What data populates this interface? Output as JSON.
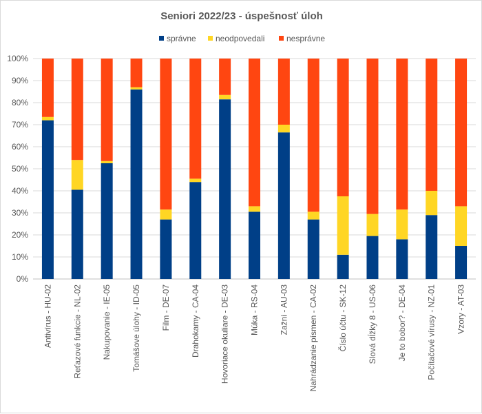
{
  "chart_data": {
    "type": "bar",
    "stacked": true,
    "normalized": true,
    "title": "Seniori 2022/23 - úspešnosť úloh",
    "xlabel": "",
    "ylabel": "",
    "ylim": [
      0,
      100
    ],
    "y_ticks": [
      "0%",
      "10%",
      "20%",
      "30%",
      "40%",
      "50%",
      "60%",
      "70%",
      "80%",
      "90%",
      "100%"
    ],
    "grid": true,
    "legend_position": "top",
    "categories": [
      "Antivírus - HU-02",
      "Reťazové funkcie - NL-02",
      "Nakupovanie - IE-05",
      "Tomášove úlohy - ID-05",
      "Film - DE-07",
      "Drahokamy - CA-04",
      "Hovoriace okuliare - DE-03",
      "Múka - RS-04",
      "Zažni - AU-03",
      "Nahrádzanie písmen - CA-02",
      "Číslo účtu - SK-12",
      "Slová dĺžky 8 - US-06",
      "Je to bobor? - DE-04",
      "Počítačové vírusy - NZ-01",
      "Vzory - AT-03"
    ],
    "series": [
      {
        "name": "správne",
        "color": "#003f87",
        "values": [
          72,
          40.5,
          52.5,
          86,
          27,
          44,
          81.5,
          30.5,
          66.5,
          27,
          11,
          19.5,
          18,
          29,
          15
        ]
      },
      {
        "name": "neodpovedali",
        "color": "#ffd624",
        "values": [
          1.5,
          13.5,
          1,
          1,
          4.5,
          1.5,
          2,
          2.5,
          3.5,
          3.5,
          26.5,
          10,
          13.5,
          11,
          18
        ]
      },
      {
        "name": "nesprávne",
        "color": "#ff4611",
        "values": [
          26.5,
          46,
          46.5,
          13,
          68.5,
          54.5,
          16.5,
          67,
          30,
          69.5,
          62.5,
          70.5,
          68.5,
          60,
          67
        ]
      }
    ]
  }
}
